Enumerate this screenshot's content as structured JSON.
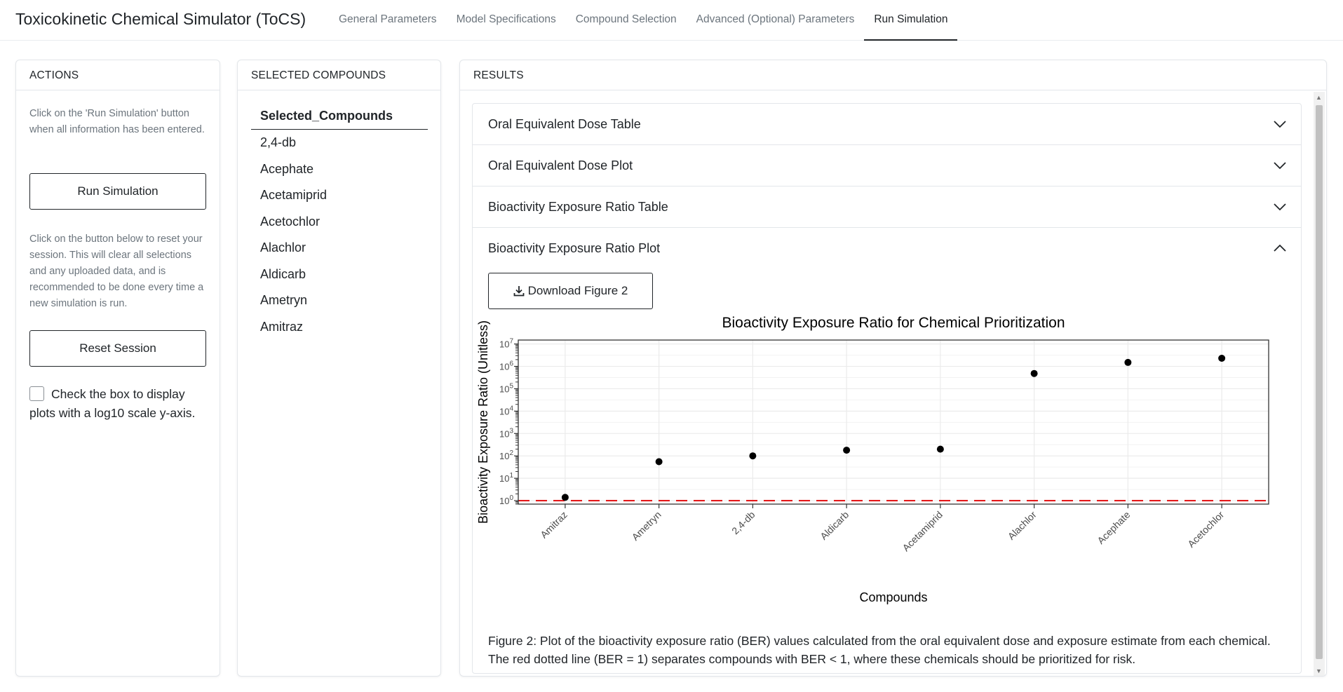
{
  "app": {
    "title": "Toxicokinetic Chemical Simulator (ToCS)"
  },
  "nav": {
    "tabs": [
      {
        "label": "General Parameters",
        "active": false
      },
      {
        "label": "Model Specifications",
        "active": false
      },
      {
        "label": "Compound Selection",
        "active": false
      },
      {
        "label": "Advanced (Optional) Parameters",
        "active": false
      },
      {
        "label": "Run Simulation",
        "active": true
      }
    ]
  },
  "actions": {
    "header": "ACTIONS",
    "run_help": "Click on the 'Run Simulation' button when all information has been entered.",
    "run_label": "Run Simulation",
    "reset_help": "Click on the button below to reset your session. This will clear all selections and any uploaded data, and is recommended to be done every time a new simulation is run.",
    "reset_label": "Reset Session",
    "log_checkbox_label": "Check the box to display plots with a log10 scale y-axis.",
    "log_checked": false
  },
  "compounds": {
    "header": "SELECTED COMPOUNDS",
    "column_header": "Selected_Compounds",
    "items": [
      "2,4-db",
      "Acephate",
      "Acetamiprid",
      "Acetochlor",
      "Alachlor",
      "Aldicarb",
      "Ametryn",
      "Amitraz"
    ]
  },
  "results": {
    "header": "RESULTS",
    "sections": [
      {
        "label": "Oral Equivalent Dose Table",
        "expanded": false
      },
      {
        "label": "Oral Equivalent Dose Plot",
        "expanded": false
      },
      {
        "label": "Bioactivity Exposure Ratio Table",
        "expanded": false
      },
      {
        "label": "Bioactivity Exposure Ratio Plot",
        "expanded": true
      }
    ],
    "download_label": "Download Figure 2",
    "caption": "Figure 2: Plot of the bioactivity exposure ratio (BER) values calculated from the oral equivalent dose and exposure estimate from each chemical. The red dotted line (BER = 1) separates compounds with BER < 1, where these chemicals should be prioritized for risk."
  },
  "chart_data": {
    "type": "scatter",
    "title": "Bioactivity Exposure Ratio for Chemical Prioritization",
    "xlabel": "Compounds",
    "ylabel": "Bioactivity Exposure Ratio (Unitless)",
    "y_scale": "log10",
    "ylim": [
      0.7,
      15000000
    ],
    "y_ticks": [
      1,
      10,
      100,
      1000,
      10000,
      100000,
      1000000,
      10000000
    ],
    "categories": [
      "Amitraz",
      "Ametryn",
      "2,4-db",
      "Aldicarb",
      "Acetamiprid",
      "Alachlor",
      "Acephate",
      "Acetochlor"
    ],
    "values": [
      1.4,
      55,
      100,
      180,
      200,
      480000,
      1500000,
      2300000
    ],
    "reference_line": {
      "y": 1,
      "color": "#e41a1c",
      "style": "dashed"
    },
    "point_color": "#000000",
    "grid": true,
    "legend": "none"
  }
}
